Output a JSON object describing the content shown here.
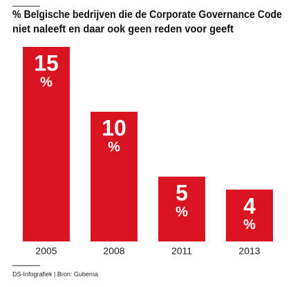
{
  "chart_data": {
    "type": "bar",
    "title": [
      "% Belgische bedrijven die de Corporate Governance Code",
      "niet naleeft en daar ook geen reden voor geeft"
    ],
    "categories": [
      "2005",
      "2008",
      "2011",
      "2013"
    ],
    "values": [
      15,
      10,
      5,
      4
    ],
    "value_unit": "%",
    "color": "#d7141f",
    "source": "DS-Infografiek | Bron: Guberna"
  }
}
